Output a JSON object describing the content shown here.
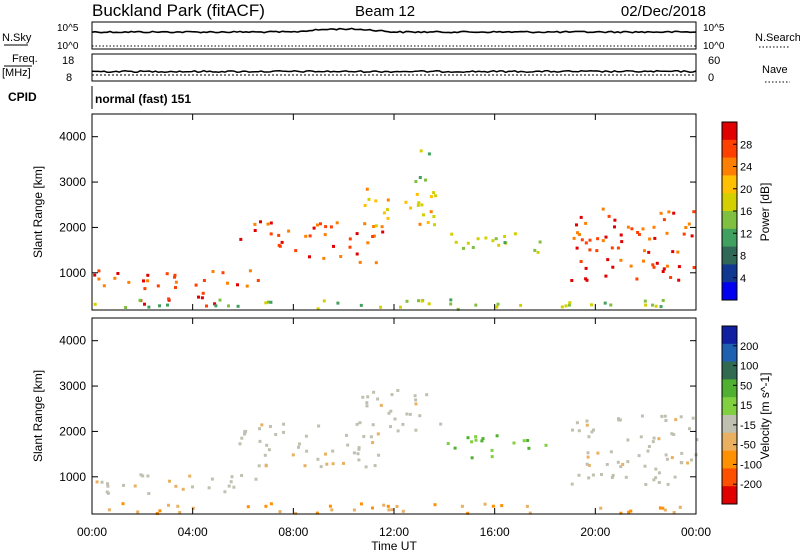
{
  "header": {
    "site": "Buckland Park (fitACF)",
    "beam": "Beam 12",
    "date": "02/Dec/2018"
  },
  "noise_panel": {
    "left_label": "N.Sky",
    "right_label": "N.Search",
    "left_ticks": [
      "10^5",
      "10^0"
    ],
    "right_ticks": [
      "10^5",
      "10^0"
    ]
  },
  "freq_panel": {
    "left_label_1": "Freq.",
    "left_label_2": "[MHz]",
    "right_label": "Nave",
    "left_ticks": [
      "18",
      "8"
    ],
    "right_ticks": [
      "60",
      "0"
    ]
  },
  "cpid_panel": {
    "label": "CPID",
    "mode": "normal (fast) 151"
  },
  "chart_data": [
    {
      "type": "heatmap",
      "name": "power",
      "ylabel": "Slant Range [km]",
      "xlabel": "Time UT",
      "x_ticks": [
        "00:00",
        "04:00",
        "08:00",
        "12:00",
        "16:00",
        "20:00",
        "00:00"
      ],
      "y_ticks": [
        1000,
        2000,
        3000,
        4000
      ],
      "ylim": [
        180,
        4500
      ],
      "colorbar": {
        "label": "Power [dB]",
        "ticks": [
          "28",
          "24",
          "20",
          "16",
          "12",
          "8",
          "4"
        ],
        "colors": [
          "#e00000",
          "#ff4000",
          "#ff8000",
          "#ffc000",
          "#d4d000",
          "#80c040",
          "#40a060",
          "#306858",
          "#103890",
          "#0000f0"
        ]
      },
      "echo_regions": [
        {
          "t": [
            0.0,
            6.8
          ],
          "r": [
            600,
            1050
          ],
          "level": "high"
        },
        {
          "t": [
            1.8,
            5.0
          ],
          "r": [
            250,
            600
          ],
          "level": "high"
        },
        {
          "t": [
            5.8,
            7.8
          ],
          "r": [
            1500,
            2200
          ],
          "level": "high"
        },
        {
          "t": [
            8.0,
            11.5
          ],
          "r": [
            1200,
            2100
          ],
          "level": "high"
        },
        {
          "t": [
            10.5,
            13.8
          ],
          "r": [
            2000,
            2900
          ],
          "level": "mid"
        },
        {
          "t": [
            12.8,
            13.6
          ],
          "r": [
            3000,
            3800
          ],
          "level": "low"
        },
        {
          "t": [
            14.0,
            18.0
          ],
          "r": [
            1400,
            1900
          ],
          "level": "low"
        },
        {
          "t": [
            19.0,
            24.0
          ],
          "r": [
            800,
            2400
          ],
          "level": "high"
        },
        {
          "t": [
            0.0,
            24.0
          ],
          "r": [
            180,
            400
          ],
          "level": "low"
        }
      ]
    },
    {
      "type": "heatmap",
      "name": "velocity",
      "ylabel": "Slant Range [km]",
      "xlabel": "Time UT",
      "x_ticks": [
        "00:00",
        "04:00",
        "08:00",
        "12:00",
        "16:00",
        "20:00",
        "00:00"
      ],
      "y_ticks": [
        1000,
        2000,
        3000,
        4000
      ],
      "ylim": [
        180,
        4500
      ],
      "colorbar": {
        "label": "Velocity [m s^-1]",
        "ticks": [
          "200",
          "100",
          "50",
          "15",
          "-15",
          "-50",
          "-100",
          "-200"
        ],
        "colors": [
          "#1020a0",
          "#2060b0",
          "#306a50",
          "#50b030",
          "#80d040",
          "#c0c0b0",
          "#e8b060",
          "#ff9000",
          "#ff5000",
          "#e00000"
        ]
      },
      "echo_regions": [
        {
          "t": [
            0.0,
            6.8
          ],
          "r": [
            600,
            1050
          ],
          "value_class": "ground"
        },
        {
          "t": [
            5.8,
            11.5
          ],
          "r": [
            1200,
            2200
          ],
          "value_class": "ground"
        },
        {
          "t": [
            10.5,
            13.8
          ],
          "r": [
            2000,
            2900
          ],
          "value_class": "ground"
        },
        {
          "t": [
            14.0,
            18.0
          ],
          "r": [
            1400,
            1900
          ],
          "value_class": "positive"
        },
        {
          "t": [
            19.0,
            24.0
          ],
          "r": [
            800,
            2400
          ],
          "value_class": "ground"
        },
        {
          "t": [
            0.0,
            24.0
          ],
          "r": [
            180,
            400
          ],
          "value_class": "negative"
        }
      ]
    }
  ]
}
